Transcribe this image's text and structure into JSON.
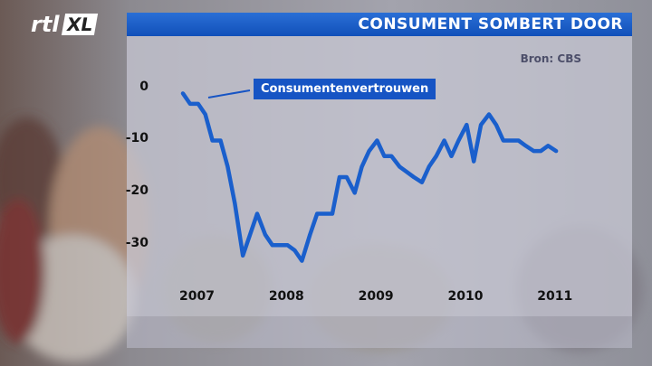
{
  "header": {
    "logo_rtl": "rtl",
    "logo_xl": "XL",
    "title": "Consument sombert door"
  },
  "colors": {
    "title_bar": "#1a5fcc",
    "line": "#1a5fcc",
    "panel": "#c9c9d6"
  },
  "chart_data": {
    "type": "line",
    "title": "Consument sombert door",
    "source": "Bron: CBS",
    "xlabel": "",
    "ylabel": "",
    "ylim": [
      -36,
      2
    ],
    "y_ticks": [
      "0",
      "-10",
      "-20",
      "-30"
    ],
    "y_tick_values": [
      0,
      -10,
      -20,
      -30
    ],
    "x_ticks": [
      "2007",
      "2008",
      "2009",
      "2010",
      "2011"
    ],
    "x_tick_values": [
      2007,
      2008,
      2009,
      2010,
      2011
    ],
    "xlim": [
      2007,
      2011.25
    ],
    "grid": false,
    "series": [
      {
        "name": "Consumentenvertrouwen",
        "x": [
          2007.0,
          2007.08,
          2007.17,
          2007.25,
          2007.33,
          2007.42,
          2007.5,
          2007.58,
          2007.67,
          2007.75,
          2007.83,
          2007.92,
          2008.0,
          2008.08,
          2008.17,
          2008.25,
          2008.33,
          2008.42,
          2008.5,
          2008.58,
          2008.67,
          2008.75,
          2008.83,
          2008.92,
          2009.0,
          2009.08,
          2009.17,
          2009.25,
          2009.33,
          2009.42,
          2009.5,
          2009.58,
          2009.67,
          2009.75,
          2009.83,
          2009.92,
          2010.0,
          2010.08,
          2010.17,
          2010.25,
          2010.33,
          2010.42,
          2010.5,
          2010.58,
          2010.67,
          2010.75,
          2010.83,
          2010.92,
          2011.0,
          2011.08,
          2011.17
        ],
        "values": [
          -1,
          -3,
          -3,
          -5,
          -10,
          -10,
          -15,
          -22,
          -32,
          -28,
          -24,
          -28,
          -30,
          -30,
          -30,
          -31,
          -33,
          -28,
          -24,
          -24,
          -24,
          -17,
          -17,
          -20,
          -15,
          -12,
          -10,
          -13,
          -13,
          -15,
          -16,
          -17,
          -18,
          -15,
          -13,
          -10,
          -13,
          -10,
          -7,
          -14,
          -7,
          -5,
          -7,
          -10,
          -10,
          -10,
          -11,
          -12,
          -12,
          -11,
          -12
        ]
      }
    ]
  }
}
